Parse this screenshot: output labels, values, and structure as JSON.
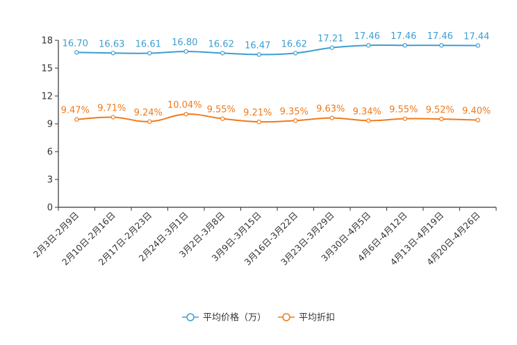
{
  "chart_data": {
    "type": "line",
    "title": "",
    "xlabel": "",
    "ylabel": "",
    "ylim": [
      0,
      18
    ],
    "yticks": [
      0,
      3,
      6,
      9,
      12,
      15,
      18
    ],
    "grid": false,
    "legend_position": "bottom-center",
    "categories": [
      "2月3日-2月9日",
      "2月10日-2月16日",
      "2月17日-2月23日",
      "2月24日-3月1日",
      "3月2日-3月8日",
      "3月9日-3月15日",
      "3月16日-3月22日",
      "3月23日-3月29日",
      "3月30日-4月5日",
      "4月6日-4月12日",
      "4月13日-4月19日",
      "4月20日-4月26日"
    ],
    "series": [
      {
        "name": "平均价格（万）",
        "color": "#3d9dd1",
        "values": [
          16.7,
          16.63,
          16.61,
          16.8,
          16.62,
          16.47,
          16.62,
          17.21,
          17.46,
          17.46,
          17.46,
          17.44
        ],
        "labels": [
          "16.70",
          "16.63",
          "16.61",
          "16.80",
          "16.62",
          "16.47",
          "16.62",
          "17.21",
          "17.46",
          "17.46",
          "17.46",
          "17.44"
        ]
      },
      {
        "name": "平均折扣",
        "color": "#f07a1a",
        "values": [
          9.47,
          9.71,
          9.24,
          10.04,
          9.55,
          9.21,
          9.35,
          9.63,
          9.34,
          9.55,
          9.52,
          9.4
        ],
        "labels": [
          "9.47%",
          "9.71%",
          "9.24%",
          "10.04%",
          "9.55%",
          "9.21%",
          "9.35%",
          "9.63%",
          "9.34%",
          "9.55%",
          "9.52%",
          "9.40%"
        ]
      }
    ]
  }
}
